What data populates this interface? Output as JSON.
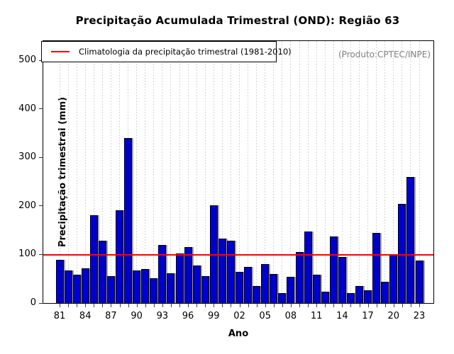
{
  "header": {
    "title": "Precipitação Acumulada Trimestral (OND): Região 63"
  },
  "legend": {
    "label": "Climatologia da precipitação trimestral (1981-2010)",
    "line_color": "#ff0000",
    "position": "top-left"
  },
  "watermark": "(Produto:CPTEC/INPE)",
  "chart_data": {
    "type": "bar",
    "title": "Precipitação Acumulada Trimestral (OND): Região 63",
    "xlabel": "Ano",
    "ylabel": "Precipitação trimestral (mm)",
    "ylim": [
      0,
      540
    ],
    "yticks": [
      0,
      100,
      200,
      300,
      400,
      500
    ],
    "grid": "vertical-dashed",
    "legend_position": "top-left",
    "bar_color": "#0000cd",
    "bar_border_color": "#000000",
    "climatology_line": {
      "label": "Climatologia da precipitação trimestral (1981-2010)",
      "value": 99,
      "color": "#ff0000"
    },
    "xtick_label_step": 3,
    "categories": [
      "81",
      "82",
      "83",
      "84",
      "85",
      "86",
      "87",
      "88",
      "89",
      "90",
      "91",
      "92",
      "93",
      "94",
      "95",
      "96",
      "97",
      "98",
      "99",
      "00",
      "01",
      "02",
      "03",
      "04",
      "05",
      "06",
      "07",
      "08",
      "09",
      "10",
      "11",
      "12",
      "13",
      "14",
      "15",
      "16",
      "17",
      "18",
      "19",
      "20",
      "21",
      "22",
      "23"
    ],
    "values": [
      89,
      67,
      58,
      71,
      181,
      129,
      55,
      191,
      340,
      67,
      70,
      51,
      120,
      61,
      102,
      115,
      77,
      56,
      201,
      133,
      128,
      64,
      75,
      35,
      80,
      60,
      21,
      54,
      105,
      147,
      59,
      23,
      137,
      95,
      21,
      35,
      27,
      144,
      44,
      99,
      204,
      260,
      88
    ]
  }
}
